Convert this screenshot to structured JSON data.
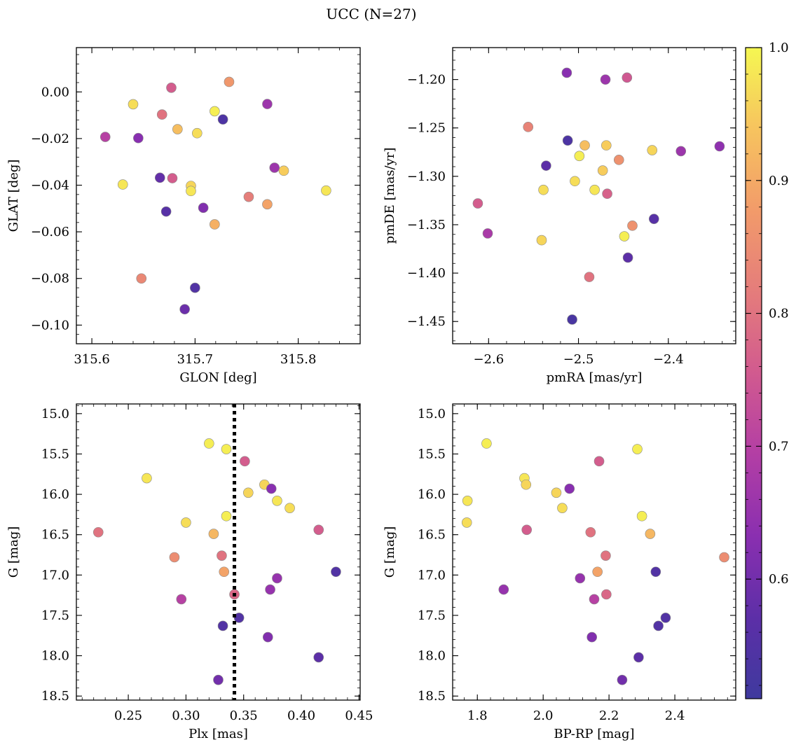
{
  "figure": {
    "title": "UCC (N=27)"
  },
  "colorbar": {
    "colormap": "plasma",
    "vmin": 0.51,
    "vmax": 1.0,
    "ticks": [
      0.6,
      0.7,
      0.8,
      0.9,
      1.0
    ],
    "tick_labels": [
      "0.6",
      "0.7",
      "0.8",
      "0.9",
      "1.0"
    ]
  },
  "chart_data": [
    {
      "type": "scatter",
      "id": "glon-glat",
      "xlabel": "GLON [deg]",
      "ylabel": "GLAT [deg]",
      "xlim": [
        315.585,
        315.86
      ],
      "ylim": [
        -0.108,
        0.019
      ],
      "xticks": [
        315.6,
        315.7,
        315.8
      ],
      "xtick_labels": [
        "315.6",
        "315.7",
        "315.8"
      ],
      "yticks": [
        0.0,
        -0.02,
        -0.04,
        -0.06,
        -0.08,
        -0.1
      ],
      "ytick_labels": [
        "0.00",
        "−0.02",
        "−0.04",
        "−0.06",
        "−0.08",
        "−0.10"
      ],
      "points": [
        {
          "x": 315.64,
          "y": -0.0053,
          "c": 0.97
        },
        {
          "x": 315.613,
          "y": -0.0193,
          "c": 0.7
        },
        {
          "x": 315.645,
          "y": -0.0198,
          "c": 0.63
        },
        {
          "x": 315.668,
          "y": -0.0097,
          "c": 0.8
        },
        {
          "x": 315.677,
          "y": 0.0018,
          "c": 0.76
        },
        {
          "x": 315.683,
          "y": -0.016,
          "c": 0.93
        },
        {
          "x": 315.702,
          "y": -0.0177,
          "c": 0.97
        },
        {
          "x": 315.719,
          "y": -0.0083,
          "c": 0.99
        },
        {
          "x": 315.727,
          "y": -0.0118,
          "c": 0.54
        },
        {
          "x": 315.733,
          "y": 0.0043,
          "c": 0.87
        },
        {
          "x": 315.77,
          "y": -0.0052,
          "c": 0.66
        },
        {
          "x": 315.63,
          "y": -0.0397,
          "c": 0.98
        },
        {
          "x": 315.666,
          "y": -0.0368,
          "c": 0.58
        },
        {
          "x": 315.678,
          "y": -0.037,
          "c": 0.76
        },
        {
          "x": 315.696,
          "y": -0.0403,
          "c": 0.96
        },
        {
          "x": 315.696,
          "y": -0.0425,
          "c": 0.98
        },
        {
          "x": 315.672,
          "y": -0.0513,
          "c": 0.56
        },
        {
          "x": 315.708,
          "y": -0.0497,
          "c": 0.62
        },
        {
          "x": 315.719,
          "y": -0.0568,
          "c": 0.91
        },
        {
          "x": 315.752,
          "y": -0.045,
          "c": 0.82
        },
        {
          "x": 315.777,
          "y": -0.0325,
          "c": 0.66
        },
        {
          "x": 315.786,
          "y": -0.0338,
          "c": 0.95
        },
        {
          "x": 315.77,
          "y": -0.0482,
          "c": 0.89
        },
        {
          "x": 315.827,
          "y": -0.0423,
          "c": 0.98
        },
        {
          "x": 315.648,
          "y": -0.08,
          "c": 0.84
        },
        {
          "x": 315.7,
          "y": -0.084,
          "c": 0.55
        },
        {
          "x": 315.69,
          "y": -0.0932,
          "c": 0.59
        }
      ]
    },
    {
      "type": "scatter",
      "id": "pmra-pmde",
      "xlabel": "pmRA [mas/yr]",
      "ylabel": "pmDE [mas/yr]",
      "xlim": [
        -2.64,
        -2.325
      ],
      "ylim": [
        -1.473,
        -1.167
      ],
      "xticks": [
        -2.6,
        -2.5,
        -2.4
      ],
      "xtick_labels": [
        "−2.6",
        "−2.5",
        "−2.4"
      ],
      "yticks": [
        -1.2,
        -1.25,
        -1.3,
        -1.35,
        -1.4,
        -1.45
      ],
      "ytick_labels": [
        "−1.20",
        "−1.25",
        "−1.30",
        "−1.35",
        "−1.40",
        "−1.45"
      ],
      "points": [
        {
          "x": -2.513,
          "y": -1.193,
          "c": 0.63
        },
        {
          "x": -2.47,
          "y": -1.2,
          "c": 0.66
        },
        {
          "x": -2.446,
          "y": -1.198,
          "c": 0.75
        },
        {
          "x": -2.556,
          "y": -1.249,
          "c": 0.83
        },
        {
          "x": -2.512,
          "y": -1.263,
          "c": 0.54
        },
        {
          "x": -2.493,
          "y": -1.268,
          "c": 0.93
        },
        {
          "x": -2.469,
          "y": -1.268,
          "c": 0.95
        },
        {
          "x": -2.418,
          "y": -1.273,
          "c": 0.96
        },
        {
          "x": -2.386,
          "y": -1.274,
          "c": 0.66
        },
        {
          "x": -2.343,
          "y": -1.269,
          "c": 0.64
        },
        {
          "x": -2.536,
          "y": -1.289,
          "c": 0.57
        },
        {
          "x": -2.499,
          "y": -1.279,
          "c": 0.99
        },
        {
          "x": -2.455,
          "y": -1.283,
          "c": 0.86
        },
        {
          "x": -2.473,
          "y": -1.294,
          "c": 0.95
        },
        {
          "x": -2.539,
          "y": -1.314,
          "c": 0.97
        },
        {
          "x": -2.504,
          "y": -1.305,
          "c": 0.97
        },
        {
          "x": -2.482,
          "y": -1.314,
          "c": 0.98
        },
        {
          "x": -2.468,
          "y": -1.318,
          "c": 0.77
        },
        {
          "x": -2.612,
          "y": -1.328,
          "c": 0.76
        },
        {
          "x": -2.601,
          "y": -1.359,
          "c": 0.68
        },
        {
          "x": -2.541,
          "y": -1.366,
          "c": 0.96
        },
        {
          "x": -2.44,
          "y": -1.351,
          "c": 0.86
        },
        {
          "x": -2.449,
          "y": -1.362,
          "c": 0.99
        },
        {
          "x": -2.416,
          "y": -1.344,
          "c": 0.56
        },
        {
          "x": -2.445,
          "y": -1.384,
          "c": 0.57
        },
        {
          "x": -2.488,
          "y": -1.404,
          "c": 0.8
        },
        {
          "x": -2.507,
          "y": -1.448,
          "c": 0.53
        }
      ]
    },
    {
      "type": "scatter",
      "id": "plx-g",
      "xlabel": "Plx [mas]",
      "ylabel": "G [mag]",
      "xlim": [
        0.205,
        0.451
      ],
      "ylim": [
        18.55,
        14.88
      ],
      "y_inverted": true,
      "vline": 0.342,
      "xticks": [
        0.25,
        0.3,
        0.35,
        0.4,
        0.45
      ],
      "xtick_labels": [
        "0.25",
        "0.30",
        "0.35",
        "0.40",
        "0.45"
      ],
      "yticks": [
        15.0,
        15.5,
        16.0,
        16.5,
        17.0,
        17.5,
        18.0,
        18.5
      ],
      "ytick_labels": [
        "15.0",
        "15.5",
        "16.0",
        "16.5",
        "17.0",
        "17.5",
        "18.0",
        "18.5"
      ],
      "points": [
        {
          "x": 0.32,
          "y": 15.37,
          "c": 0.99
        },
        {
          "x": 0.335,
          "y": 15.44,
          "c": 0.99
        },
        {
          "x": 0.351,
          "y": 15.59,
          "c": 0.76
        },
        {
          "x": 0.266,
          "y": 15.8,
          "c": 0.98
        },
        {
          "x": 0.368,
          "y": 15.88,
          "c": 0.96
        },
        {
          "x": 0.374,
          "y": 15.93,
          "c": 0.63
        },
        {
          "x": 0.354,
          "y": 15.98,
          "c": 0.96
        },
        {
          "x": 0.379,
          "y": 16.08,
          "c": 0.98
        },
        {
          "x": 0.39,
          "y": 16.17,
          "c": 0.97
        },
        {
          "x": 0.335,
          "y": 16.27,
          "c": 0.99
        },
        {
          "x": 0.3,
          "y": 16.35,
          "c": 0.97
        },
        {
          "x": 0.415,
          "y": 16.44,
          "c": 0.76
        },
        {
          "x": 0.224,
          "y": 16.47,
          "c": 0.8
        },
        {
          "x": 0.324,
          "y": 16.49,
          "c": 0.92
        },
        {
          "x": 0.29,
          "y": 16.78,
          "c": 0.85
        },
        {
          "x": 0.331,
          "y": 16.76,
          "c": 0.8
        },
        {
          "x": 0.333,
          "y": 16.96,
          "c": 0.89
        },
        {
          "x": 0.43,
          "y": 16.96,
          "c": 0.55
        },
        {
          "x": 0.379,
          "y": 17.04,
          "c": 0.65
        },
        {
          "x": 0.373,
          "y": 17.18,
          "c": 0.65
        },
        {
          "x": 0.342,
          "y": 17.24,
          "c": 0.78
        },
        {
          "x": 0.296,
          "y": 17.3,
          "c": 0.7
        },
        {
          "x": 0.346,
          "y": 17.53,
          "c": 0.55
        },
        {
          "x": 0.332,
          "y": 17.63,
          "c": 0.55
        },
        {
          "x": 0.371,
          "y": 17.77,
          "c": 0.62
        },
        {
          "x": 0.415,
          "y": 18.02,
          "c": 0.57
        },
        {
          "x": 0.328,
          "y": 18.3,
          "c": 0.6
        }
      ]
    },
    {
      "type": "scatter",
      "id": "bprp-g",
      "xlabel": "BP-RP [mag]",
      "ylabel": "G [mag]",
      "xlim": [
        1.725,
        2.585
      ],
      "ylim": [
        18.55,
        14.88
      ],
      "y_inverted": true,
      "xticks": [
        1.8,
        2.0,
        2.2,
        2.4
      ],
      "xtick_labels": [
        "1.8",
        "2.0",
        "2.2",
        "2.4"
      ],
      "yticks": [
        15.0,
        15.5,
        16.0,
        16.5,
        17.0,
        17.5,
        18.0,
        18.5
      ],
      "ytick_labels": [
        "15.0",
        "15.5",
        "16.0",
        "16.5",
        "17.0",
        "17.5",
        "18.0",
        "18.5"
      ],
      "points": [
        {
          "x": 1.828,
          "y": 15.37,
          "c": 0.99
        },
        {
          "x": 2.286,
          "y": 15.44,
          "c": 0.99
        },
        {
          "x": 2.17,
          "y": 15.59,
          "c": 0.76
        },
        {
          "x": 1.943,
          "y": 15.8,
          "c": 0.98
        },
        {
          "x": 1.948,
          "y": 15.88,
          "c": 0.96
        },
        {
          "x": 2.08,
          "y": 15.93,
          "c": 0.63
        },
        {
          "x": 2.04,
          "y": 15.98,
          "c": 0.96
        },
        {
          "x": 1.77,
          "y": 16.08,
          "c": 0.98
        },
        {
          "x": 2.058,
          "y": 16.17,
          "c": 0.97
        },
        {
          "x": 2.3,
          "y": 16.27,
          "c": 0.99
        },
        {
          "x": 1.768,
          "y": 16.35,
          "c": 0.97
        },
        {
          "x": 1.95,
          "y": 16.44,
          "c": 0.76
        },
        {
          "x": 2.144,
          "y": 16.47,
          "c": 0.8
        },
        {
          "x": 2.325,
          "y": 16.49,
          "c": 0.92
        },
        {
          "x": 2.19,
          "y": 16.76,
          "c": 0.8
        },
        {
          "x": 2.55,
          "y": 16.78,
          "c": 0.85
        },
        {
          "x": 2.165,
          "y": 16.96,
          "c": 0.89
        },
        {
          "x": 2.342,
          "y": 16.96,
          "c": 0.55
        },
        {
          "x": 2.112,
          "y": 17.04,
          "c": 0.65
        },
        {
          "x": 1.88,
          "y": 17.18,
          "c": 0.65
        },
        {
          "x": 2.192,
          "y": 17.24,
          "c": 0.78
        },
        {
          "x": 2.155,
          "y": 17.3,
          "c": 0.7
        },
        {
          "x": 2.372,
          "y": 17.53,
          "c": 0.55
        },
        {
          "x": 2.35,
          "y": 17.63,
          "c": 0.55
        },
        {
          "x": 2.148,
          "y": 17.77,
          "c": 0.62
        },
        {
          "x": 2.29,
          "y": 18.02,
          "c": 0.57
        },
        {
          "x": 2.24,
          "y": 18.3,
          "c": 0.6
        }
      ]
    }
  ]
}
